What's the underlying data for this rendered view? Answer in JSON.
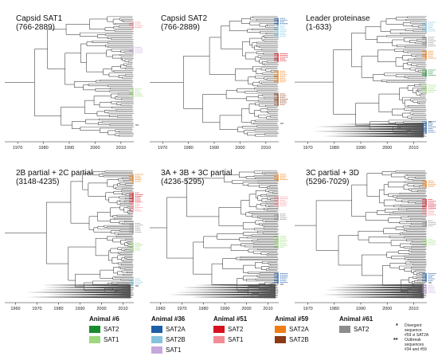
{
  "panels": [
    {
      "id": "p1",
      "title_line1": "Capsid SAT1",
      "title_line2": "(766-2889)",
      "ticks": [
        "1970",
        "1980",
        "1990",
        "2000",
        "2010"
      ]
    },
    {
      "id": "p2",
      "title_line1": "Capsid SAT2",
      "title_line2": "(766-2889)",
      "ticks": [
        "1970",
        "1980",
        "1990",
        "2000",
        "2010"
      ]
    },
    {
      "id": "p3",
      "title_line1": "Leader proteinase",
      "title_line2": "(1-633)",
      "ticks": [
        "1970",
        "1980",
        "1990",
        "2000",
        "2010"
      ]
    },
    {
      "id": "p4",
      "title_line1": "2B partial + 2C partial",
      "title_line2": "(3148-4235)",
      "ticks": [
        "1960",
        "1970",
        "1980",
        "1990",
        "2000",
        "2010"
      ]
    },
    {
      "id": "p5",
      "title_line1": "3A + 3B + 3C partial",
      "title_line2": "(4236-5295)",
      "ticks": [
        "1960",
        "1970",
        "1980",
        "1990",
        "2000",
        "2010"
      ]
    },
    {
      "id": "p6",
      "title_line1": "3C partial + 3D",
      "title_line2": "(5296-7029)",
      "ticks": [
        "1970",
        "1980",
        "1990",
        "2000",
        "2010"
      ]
    }
  ],
  "legend": {
    "animals": [
      {
        "header": "Animal #6",
        "items": [
          {
            "label": "SAT2",
            "color": "#1a8a2e"
          },
          {
            "label": "SAT1",
            "color": "#9ed87e"
          }
        ]
      },
      {
        "header": "Animal #36",
        "items": [
          {
            "label": "SAT2A",
            "color": "#1f5ea8"
          },
          {
            "label": "SAT2B",
            "color": "#86c3e0"
          },
          {
            "label": "SAT1",
            "color": "#c6a8dc"
          }
        ]
      },
      {
        "header": "Animal #51",
        "items": [
          {
            "label": "SAT2",
            "color": "#d6121f"
          },
          {
            "label": "SAT1",
            "color": "#f28c96"
          }
        ]
      },
      {
        "header": "Animal #59",
        "items": [
          {
            "label": "SAT2A",
            "color": "#f07d15"
          },
          {
            "label": "SAT2B",
            "color": "#8b3a14"
          }
        ]
      },
      {
        "header": "Animal #61",
        "items": [
          {
            "label": "SAT2",
            "color": "#8c8c8c"
          }
        ]
      }
    ],
    "notes": [
      {
        "mark": "*",
        "text_line1": "Divergent sequence",
        "text_line2": "#59 vi SAT2A"
      },
      {
        "mark": "**",
        "text_line1": "Outbreak sequences",
        "text_line2": "#34 and #59"
      }
    ]
  }
}
